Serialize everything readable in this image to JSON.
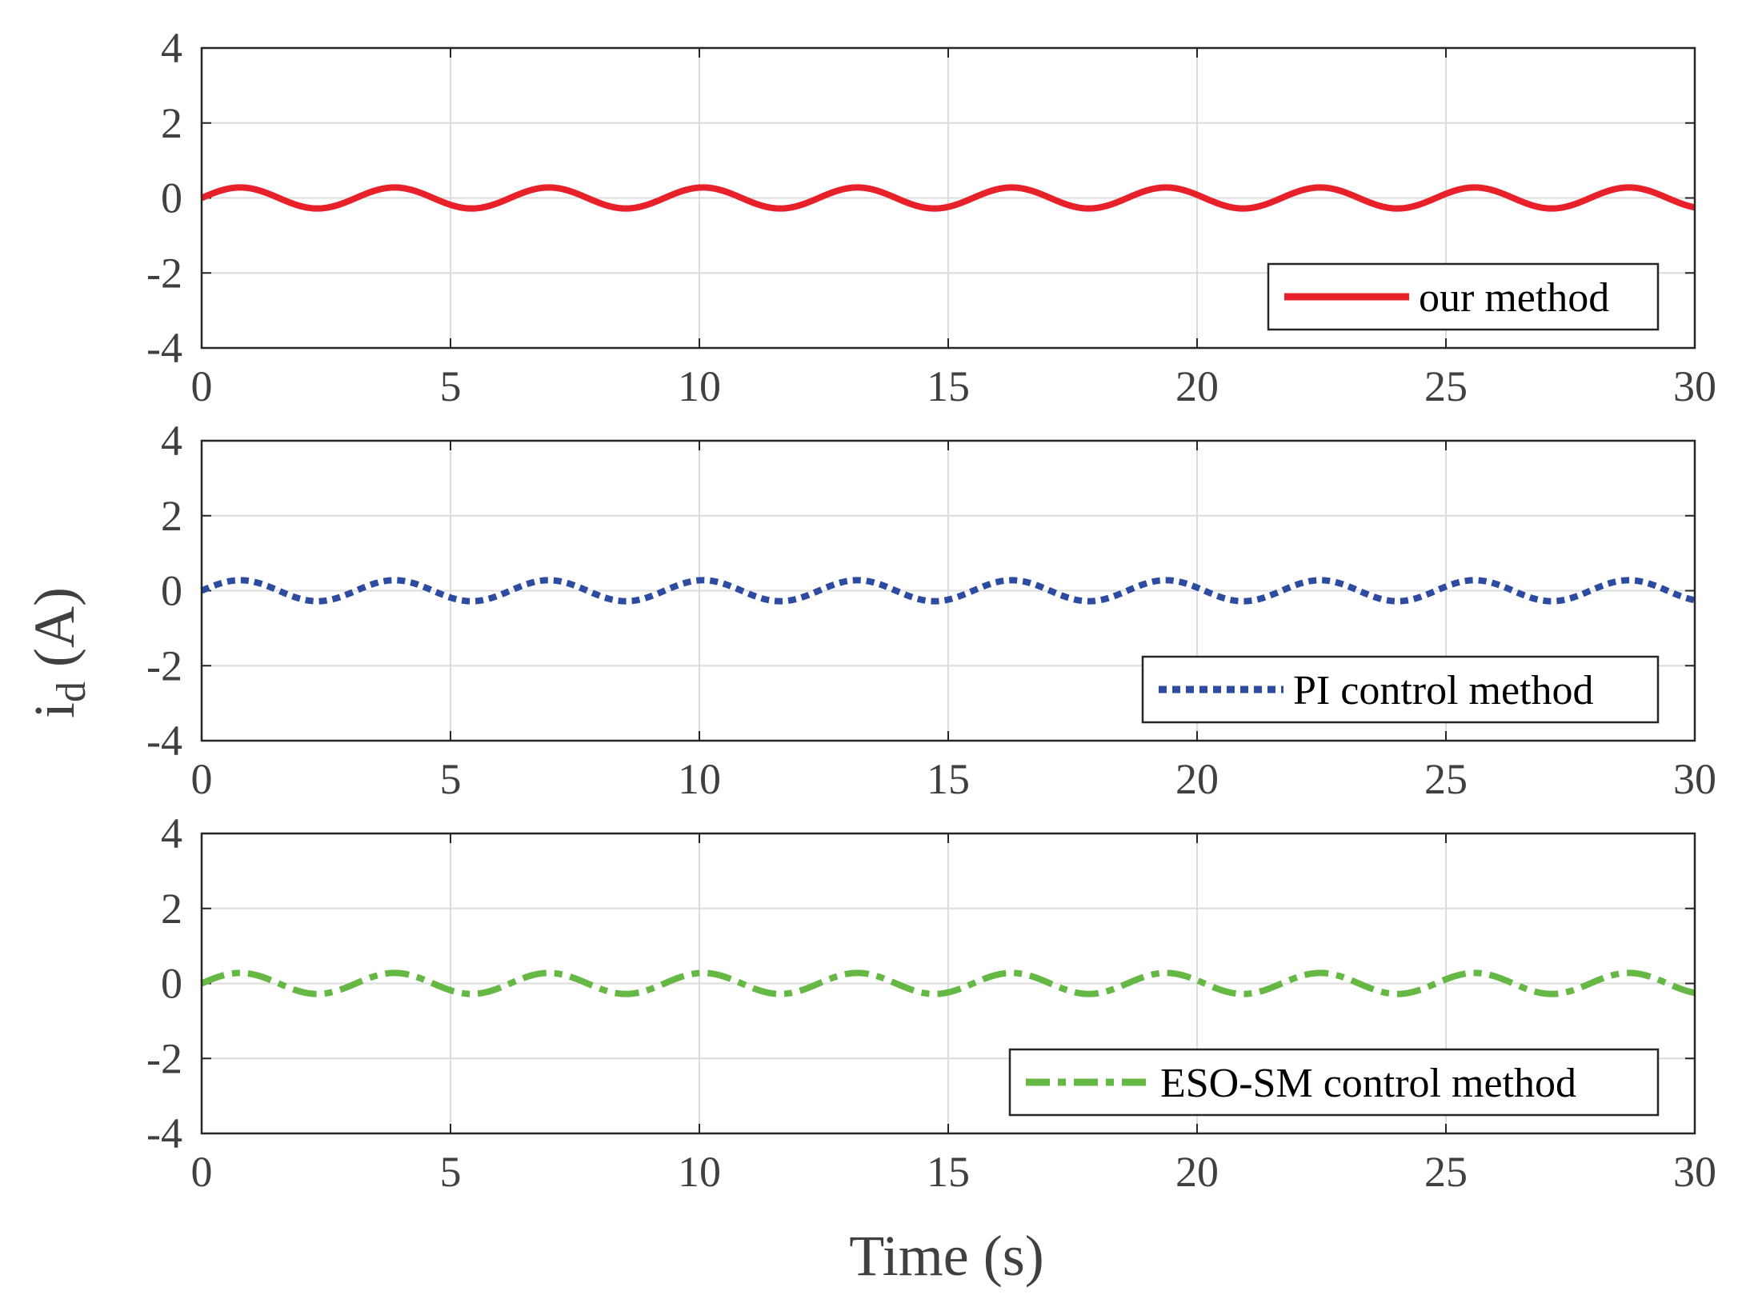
{
  "chart_data": [
    {
      "type": "line",
      "title": "",
      "xlabel": "Time (s)",
      "ylabel": "i_d (A)",
      "xlim": [
        0,
        30
      ],
      "ylim": [
        -4,
        4
      ],
      "xticks": [
        "0",
        "5",
        "10",
        "15",
        "20",
        "25",
        "30"
      ],
      "yticks": [
        "4",
        "2",
        "0",
        "-2",
        "-4"
      ],
      "grid": true,
      "legend_position": "bottom-right",
      "series": [
        {
          "name": "our method",
          "style": "solid",
          "color": "#e8202a",
          "signal": {
            "kind": "sinusoid",
            "amplitude": 0.28,
            "period": 3.1,
            "phase_deg": 0,
            "offset": 0
          }
        }
      ]
    },
    {
      "type": "line",
      "title": "",
      "xlabel": "Time (s)",
      "ylabel": "i_d (A)",
      "xlim": [
        0,
        30
      ],
      "ylim": [
        -4,
        4
      ],
      "xticks": [
        "0",
        "5",
        "10",
        "15",
        "20",
        "25",
        "30"
      ],
      "yticks": [
        "4",
        "2",
        "0",
        "-2",
        "-4"
      ],
      "grid": true,
      "legend_position": "bottom-right",
      "series": [
        {
          "name": "PI control method",
          "style": "dotted",
          "color": "#2d4ba0",
          "signal": {
            "kind": "sinusoid",
            "amplitude": 0.28,
            "period": 3.1,
            "phase_deg": 0,
            "offset": 0
          }
        }
      ]
    },
    {
      "type": "line",
      "title": "",
      "xlabel": "Time (s)",
      "ylabel": "i_d (A)",
      "xlim": [
        0,
        30
      ],
      "ylim": [
        -4,
        4
      ],
      "xticks": [
        "0",
        "5",
        "10",
        "15",
        "20",
        "25",
        "30"
      ],
      "yticks": [
        "4",
        "2",
        "0",
        "-2",
        "-4"
      ],
      "grid": true,
      "legend_position": "bottom-right",
      "series": [
        {
          "name": "ESO-SM control method",
          "style": "dash-dot",
          "color": "#66b845",
          "signal": {
            "kind": "sinusoid",
            "amplitude": 0.28,
            "period": 3.1,
            "phase_deg": 0,
            "offset": 0
          }
        }
      ]
    }
  ],
  "figure": {
    "xlabel": "Time (s)",
    "ylabel_main": "i",
    "ylabel_subscript": "d",
    "ylabel_unit": " (A)"
  }
}
